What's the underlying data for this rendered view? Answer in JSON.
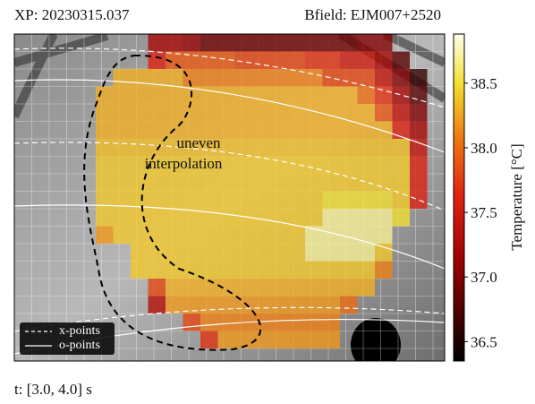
{
  "chart_data": {
    "type": "heatmap",
    "title": "XP: 20230315.037",
    "bfield": "Bfield: EJM007+2520",
    "footer": "t: [3.0, 4.0] s",
    "annotation": [
      "uneven",
      "interpolation"
    ],
    "legend": {
      "position": "lower left",
      "entries": [
        {
          "name": "x-points",
          "style": "dashed"
        },
        {
          "name": "o-points",
          "style": "solid"
        }
      ]
    },
    "colorbar": {
      "label": "Temperature [°C]",
      "lim": [
        36.35,
        38.88
      ],
      "ticks": [
        36.5,
        {
          "value": 37,
          "label": "37.0"
        },
        37.5,
        {
          "value": 38,
          "label": "38.0"
        },
        38.5
      ]
    },
    "values": [
      [
        null,
        null,
        null,
        37.2,
        37.2,
        37.1,
        36.9,
        36.9,
        36.9,
        36.9,
        36.9,
        36.9,
        36.9,
        36.9,
        36.9,
        37.0,
        37.0,
        null,
        null
      ],
      [
        null,
        null,
        null,
        37.6,
        37.9,
        37.9,
        37.9,
        37.9,
        37.8,
        37.8,
        37.8,
        37.8,
        37.7,
        37.7,
        37.5,
        37.5,
        37.2,
        36.8,
        null
      ],
      [
        null,
        38.3,
        38.3,
        38.3,
        38.3,
        38.1,
        38.1,
        38.1,
        38.1,
        38.1,
        38.1,
        38.1,
        38.1,
        37.8,
        37.8,
        37.8,
        37.4,
        37.0,
        36.6
      ],
      [
        38.3,
        38.3,
        38.3,
        38.3,
        38.3,
        38.3,
        38.3,
        38.3,
        38.3,
        38.3,
        38.3,
        38.3,
        38.3,
        38.3,
        38.3,
        38.0,
        37.7,
        37.2,
        36.8
      ],
      [
        38.3,
        38.3,
        38.3,
        38.3,
        38.3,
        38.3,
        38.3,
        38.3,
        38.3,
        38.3,
        38.3,
        38.3,
        38.3,
        38.3,
        38.3,
        38.3,
        37.9,
        37.4,
        37.0
      ],
      [
        38.3,
        38.3,
        38.3,
        38.3,
        38.3,
        38.3,
        38.3,
        38.3,
        38.3,
        38.3,
        38.3,
        38.3,
        38.3,
        38.3,
        38.3,
        38.3,
        38.3,
        37.6,
        37.2
      ],
      [
        38.35,
        38.35,
        38.35,
        38.35,
        38.35,
        38.35,
        38.35,
        38.35,
        38.35,
        38.35,
        38.35,
        38.35,
        38.35,
        38.35,
        38.35,
        38.35,
        38.35,
        38.35,
        37.4
      ],
      [
        38.4,
        38.4,
        38.4,
        38.4,
        38.4,
        38.4,
        38.4,
        38.4,
        38.4,
        38.4,
        38.4,
        38.4,
        38.4,
        38.4,
        38.4,
        38.4,
        38.4,
        38.4,
        37.6
      ],
      [
        38.4,
        38.4,
        38.4,
        38.4,
        38.4,
        38.4,
        38.4,
        38.4,
        38.4,
        38.4,
        38.4,
        38.4,
        38.4,
        38.4,
        38.4,
        38.4,
        38.4,
        38.4,
        37.6
      ],
      [
        38.4,
        38.4,
        38.4,
        38.4,
        38.4,
        38.4,
        38.4,
        38.4,
        38.4,
        38.4,
        38.4,
        38.4,
        38.4,
        38.5,
        38.5,
        38.5,
        38.5,
        38.4,
        37.6
      ],
      [
        38.4,
        38.4,
        38.4,
        38.4,
        38.4,
        38.4,
        38.4,
        38.4,
        38.4,
        38.4,
        38.4,
        38.4,
        38.4,
        38.7,
        38.7,
        38.7,
        38.7,
        38.5,
        null
      ],
      [
        38.2,
        38.4,
        38.4,
        38.4,
        38.4,
        38.4,
        38.4,
        38.4,
        38.4,
        38.4,
        38.4,
        38.4,
        38.7,
        38.7,
        38.7,
        38.7,
        38.7,
        null,
        null
      ],
      [
        null,
        null,
        38.4,
        38.4,
        38.4,
        38.4,
        38.4,
        38.4,
        38.4,
        38.4,
        38.4,
        38.4,
        38.7,
        38.7,
        38.7,
        38.7,
        38.4,
        null,
        null
      ],
      [
        null,
        null,
        38.4,
        38.4,
        38.4,
        38.4,
        38.4,
        38.4,
        38.4,
        38.4,
        38.4,
        38.4,
        38.4,
        38.4,
        38.4,
        38.4,
        38.1,
        null,
        null
      ],
      [
        null,
        null,
        null,
        37.8,
        38.3,
        38.3,
        38.3,
        38.3,
        38.3,
        38.3,
        38.3,
        38.3,
        38.3,
        38.3,
        38.3,
        38.3,
        null,
        null,
        null
      ],
      [
        null,
        null,
        null,
        37.3,
        38.2,
        38.2,
        38.2,
        38.2,
        38.2,
        38.2,
        38.2,
        38.2,
        38.2,
        38.2,
        38.0,
        null,
        null,
        null,
        null
      ],
      [
        null,
        null,
        null,
        null,
        null,
        37.8,
        38.1,
        38.1,
        38.1,
        38.1,
        38.1,
        38.1,
        38.1,
        38.1,
        null,
        null,
        null,
        null,
        null
      ],
      [
        null,
        null,
        null,
        null,
        null,
        null,
        37.7,
        38.2,
        38.2,
        38.2,
        38.2,
        38.2,
        38.2,
        38.2,
        null,
        null,
        null,
        null,
        null
      ]
    ]
  }
}
